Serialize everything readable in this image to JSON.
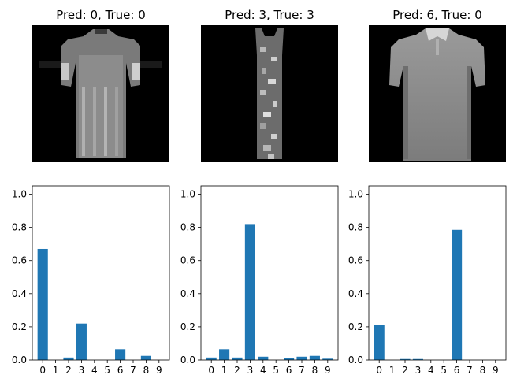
{
  "chart_data": [
    {
      "type": "image",
      "title": "Pred: 0, True: 0",
      "image_label": "grayscale t-shirt/top image"
    },
    {
      "type": "image",
      "title": "Pred: 3, True: 3",
      "image_label": "grayscale dress image"
    },
    {
      "type": "image",
      "title": "Pred: 6, True: 0",
      "image_label": "grayscale shirt image"
    },
    {
      "type": "bar",
      "categories": [
        "0",
        "1",
        "2",
        "3",
        "4",
        "5",
        "6",
        "7",
        "8",
        "9"
      ],
      "values": [
        0.67,
        0.0,
        0.015,
        0.22,
        0.0,
        0.0,
        0.065,
        0.0,
        0.025,
        0.0
      ],
      "ylim": [
        0,
        1.05
      ],
      "yticks": [
        "0.0",
        "0.2",
        "0.4",
        "0.6",
        "0.8",
        "1.0"
      ],
      "color": "#1f77b4"
    },
    {
      "type": "bar",
      "categories": [
        "0",
        "1",
        "2",
        "3",
        "4",
        "5",
        "6",
        "7",
        "8",
        "9"
      ],
      "values": [
        0.015,
        0.065,
        0.015,
        0.82,
        0.02,
        0.0,
        0.012,
        0.02,
        0.025,
        0.008
      ],
      "ylim": [
        0,
        1.05
      ],
      "yticks": [
        "0.0",
        "0.2",
        "0.4",
        "0.6",
        "0.8",
        "1.0"
      ],
      "color": "#1f77b4"
    },
    {
      "type": "bar",
      "categories": [
        "0",
        "1",
        "2",
        "3",
        "4",
        "5",
        "6",
        "7",
        "8",
        "9"
      ],
      "values": [
        0.21,
        0.0,
        0.006,
        0.006,
        0.0,
        0.0,
        0.785,
        0.0,
        0.0,
        0.0
      ],
      "ylim": [
        0,
        1.05
      ],
      "yticks": [
        "0.0",
        "0.2",
        "0.4",
        "0.6",
        "0.8",
        "1.0"
      ],
      "color": "#1f77b4"
    }
  ]
}
